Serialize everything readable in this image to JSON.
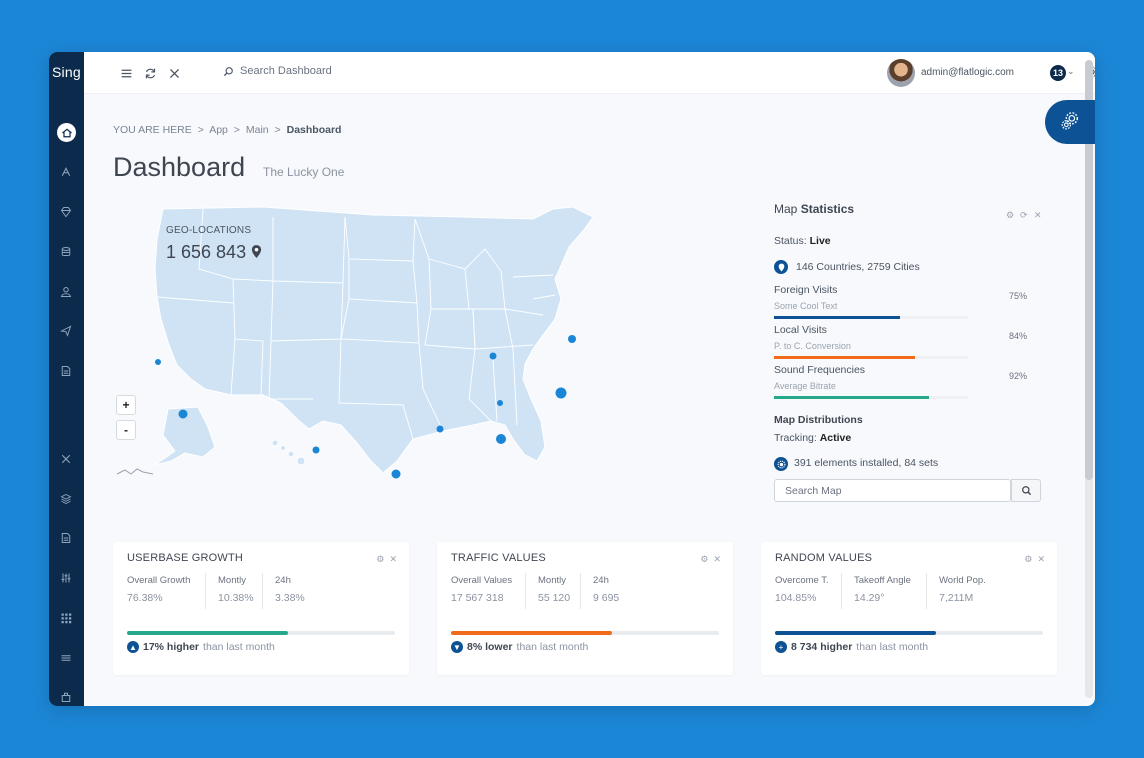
{
  "brand": "Sing",
  "header": {
    "search_placeholder": "Search Dashboard",
    "email": "admin@flatlogic.com",
    "notifications": "13"
  },
  "breadcrumb": {
    "prefix": "YOU ARE HERE",
    "items": [
      "App",
      "Main"
    ],
    "current": "Dashboard",
    "sep": ">"
  },
  "page": {
    "title": "Dashboard",
    "subtitle": "The Lucky One"
  },
  "map": {
    "geo_label": "GEO-LOCATIONS",
    "geo_count": "1 656 843",
    "zoom_in": "+",
    "zoom_out": "-"
  },
  "stats": {
    "title_light": "Map",
    "title_bold": "Statistics",
    "status_label": "Status:",
    "status_value": "Live",
    "countries": "146 Countries, 2759 Cities",
    "items": [
      {
        "label": "Foreign Visits",
        "sub": "Some Cool Text",
        "pct": "75%",
        "value": 0.75,
        "color": "#0c5294"
      },
      {
        "label": "Local Visits",
        "sub": "P. to C. Conversion",
        "pct": "84%",
        "value": 0.84,
        "color": "#f26a1b"
      },
      {
        "label": "Sound Frequencies",
        "sub": "Average Bitrate",
        "pct": "92%",
        "value": 0.92,
        "color": "#26a98b"
      }
    ],
    "dist_title": "Map Distributions",
    "tracking_label": "Tracking:",
    "tracking_value": "Active",
    "elements": "391 elements installed, 84 sets",
    "search_placeholder": "Search Map"
  },
  "cards": [
    {
      "title": "USERBASE GROWTH",
      "cols": [
        {
          "label": "Overall Growth",
          "value": "76.38%"
        },
        {
          "label": "Montly",
          "value": "10.38%"
        },
        {
          "label": "24h",
          "value": "3.38%"
        }
      ],
      "progress": 0.6,
      "color": "#26a98b",
      "foot_bold": "17% higher",
      "foot_rest": "than last month",
      "foot_icon": "▲"
    },
    {
      "title": "TRAFFIC VALUES",
      "cols": [
        {
          "label": "Overall Values",
          "value": "17 567 318"
        },
        {
          "label": "Montly",
          "value": "55 120"
        },
        {
          "label": "24h",
          "value": "9 695"
        }
      ],
      "progress": 0.6,
      "color": "#f26a1b",
      "foot_bold": "8% lower",
      "foot_rest": "than last month",
      "foot_icon": "▼"
    },
    {
      "title": "RANDOM VALUES",
      "cols": [
        {
          "label": "Overcome T.",
          "value": "104.85%"
        },
        {
          "label": "Takeoff Angle",
          "value": "14.29°"
        },
        {
          "label": "World Pop.",
          "value": "7,211M"
        }
      ],
      "progress": 0.6,
      "color": "#0c5294",
      "foot_bold": "8 734 higher",
      "foot_rest": "than last month",
      "foot_icon": "+"
    }
  ],
  "colors": {
    "sidebar": "#0c2a4b",
    "accent": "#0c5294",
    "map": "#cfe3f5",
    "marker": "#1c86d6"
  }
}
